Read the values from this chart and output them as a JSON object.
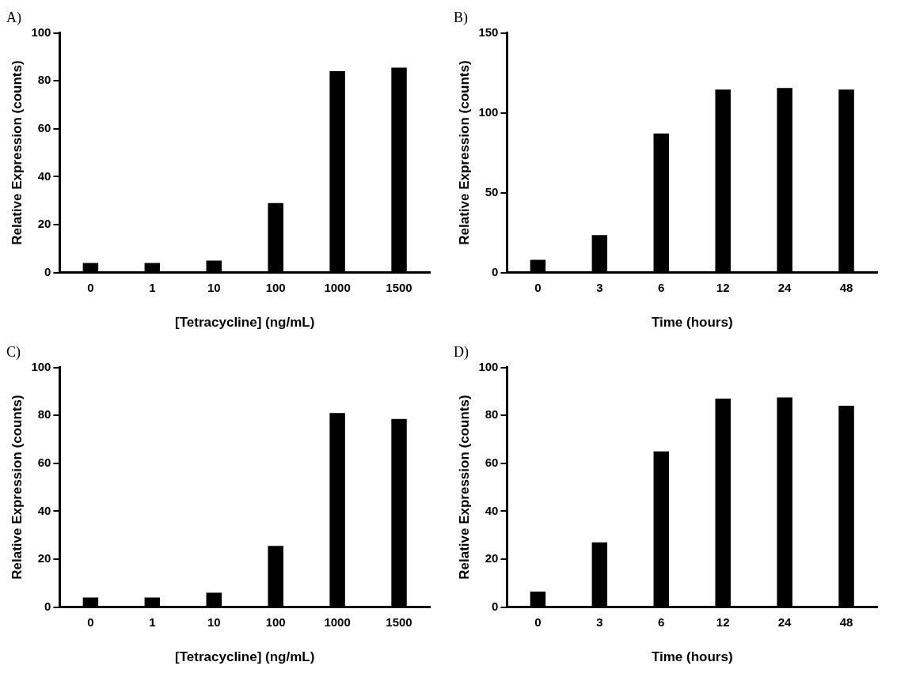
{
  "chart_data": [
    {
      "type": "bar",
      "title": "A)",
      "categories": [
        "0",
        "1",
        "10",
        "100",
        "1000",
        "1500"
      ],
      "values": [
        4,
        4,
        5,
        29,
        84,
        85.5
      ],
      "color": "#000000",
      "ylim": [
        0,
        100
      ],
      "yticks": [
        0,
        20,
        40,
        60,
        80,
        100
      ],
      "xlabel": "[Tetracycline] (ng/mL)",
      "ylabel": "Relative Expression (counts)"
    },
    {
      "type": "bar",
      "title": "B)",
      "categories": [
        "0",
        "3",
        "6",
        "12",
        "24",
        "48"
      ],
      "values": [
        8,
        23.5,
        87,
        114.5,
        115.5,
        114.5
      ],
      "color": "#000000",
      "ylim": [
        0,
        150
      ],
      "yticks": [
        0,
        50,
        100,
        150
      ],
      "xlabel": "Time (hours)",
      "ylabel": "Relative Expression (counts)"
    },
    {
      "type": "bar",
      "title": "C)",
      "categories": [
        "0",
        "1",
        "10",
        "100",
        "1000",
        "1500"
      ],
      "values": [
        4,
        4,
        6,
        25.5,
        81,
        78.5
      ],
      "color": "#000000",
      "ylim": [
        0,
        100
      ],
      "yticks": [
        0,
        20,
        40,
        60,
        80,
        100
      ],
      "xlabel": "[Tetracycline] (ng/mL)",
      "ylabel": "Relative Expression (counts)"
    },
    {
      "type": "bar",
      "title": "D)",
      "categories": [
        "0",
        "3",
        "6",
        "12",
        "24",
        "48"
      ],
      "values": [
        6.5,
        27,
        65,
        87,
        87.5,
        84
      ],
      "color": "#000000",
      "ylim": [
        0,
        100
      ],
      "yticks": [
        0,
        20,
        40,
        60,
        80,
        100
      ],
      "xlabel": "Time (hours)",
      "ylabel": "Relative Expression (counts)"
    }
  ]
}
